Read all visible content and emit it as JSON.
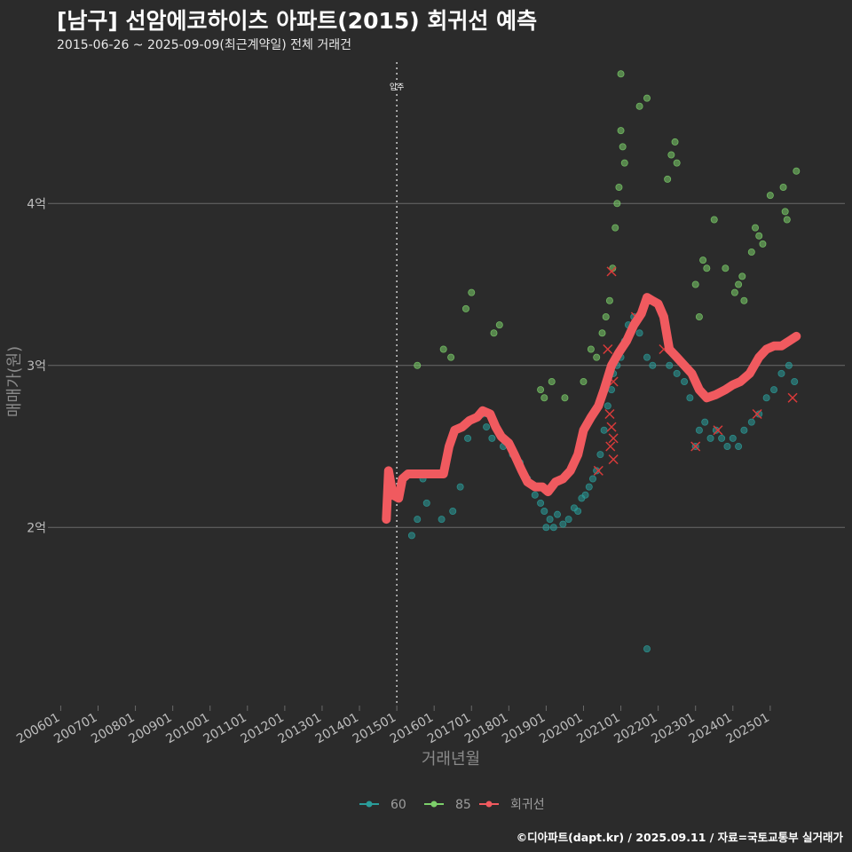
{
  "header": {
    "title": "[남구] 선암에코하이츠 아파트(2015) 회귀선 예측",
    "subtitle": "2015-06-26 ~ 2025-09-09(최근계약일) 전체 거래건"
  },
  "footer": {
    "credit": "©디아파트(dapt.kr) / 2025.09.11 / 자료=국토교통부 실거래가"
  },
  "colors": {
    "background": "#2b2b2b",
    "series_60": "#2a9d9a",
    "series_85": "#7ccf6a",
    "regression": "#f05a5f",
    "highlight_x": "#d93a3a",
    "gridline": "#6a6a6a",
    "marker_line": "#cfcfcf"
  },
  "chart_data": {
    "type": "scatter",
    "title": "[남구] 선암에코하이츠 아파트(2015) 회귀선 예측",
    "subtitle": "2015-06-26 ~ 2025-09-09(최근계약일) 전체 거래건",
    "xlabel": "거래년월",
    "ylabel": "매매가(원)",
    "x_ticks": [
      "200601",
      "200701",
      "200801",
      "200901",
      "201001",
      "201101",
      "201201",
      "201301",
      "201401",
      "201501",
      "201601",
      "201701",
      "201801",
      "201901",
      "202001",
      "202101",
      "202201",
      "202301",
      "202401",
      "202501"
    ],
    "xlim": [
      2005.8,
      2027.0
    ],
    "y_ticks": [
      {
        "value": 2.0,
        "label": "2억"
      },
      {
        "value": 3.0,
        "label": "3억"
      },
      {
        "value": 4.0,
        "label": "4억"
      }
    ],
    "ylim": [
      0.9,
      4.9
    ],
    "y_unit": "억",
    "grid": "horizontal",
    "legend_position": "bottom",
    "annotation": {
      "x": 2015.0,
      "label": "입주"
    },
    "series": [
      {
        "name": "60",
        "color": "#2a9d9a",
        "points": [
          [
            2015.4,
            1.95
          ],
          [
            2015.55,
            2.05
          ],
          [
            2015.7,
            2.3
          ],
          [
            2015.8,
            2.15
          ],
          [
            2016.2,
            2.05
          ],
          [
            2016.5,
            2.1
          ],
          [
            2016.7,
            2.25
          ],
          [
            2016.9,
            2.55
          ],
          [
            2017.3,
            2.7
          ],
          [
            2017.4,
            2.62
          ],
          [
            2017.55,
            2.55
          ],
          [
            2017.7,
            2.6
          ],
          [
            2017.85,
            2.5
          ],
          [
            2018.1,
            2.45
          ],
          [
            2018.3,
            2.4
          ],
          [
            2018.5,
            2.3
          ],
          [
            2018.7,
            2.2
          ],
          [
            2018.85,
            2.15
          ],
          [
            2018.95,
            2.1
          ],
          [
            2019.0,
            2.0
          ],
          [
            2019.1,
            2.05
          ],
          [
            2019.2,
            2.0
          ],
          [
            2019.3,
            2.08
          ],
          [
            2019.45,
            2.02
          ],
          [
            2019.6,
            2.05
          ],
          [
            2019.75,
            2.12
          ],
          [
            2019.85,
            2.1
          ],
          [
            2019.95,
            2.18
          ],
          [
            2020.05,
            2.2
          ],
          [
            2020.15,
            2.25
          ],
          [
            2020.25,
            2.3
          ],
          [
            2020.35,
            2.35
          ],
          [
            2020.45,
            2.45
          ],
          [
            2020.55,
            2.6
          ],
          [
            2020.65,
            2.75
          ],
          [
            2020.75,
            2.85
          ],
          [
            2020.8,
            2.95
          ],
          [
            2020.9,
            3.0
          ],
          [
            2021.0,
            3.05
          ],
          [
            2021.1,
            3.15
          ],
          [
            2021.2,
            3.25
          ],
          [
            2021.35,
            3.3
          ],
          [
            2021.5,
            3.2
          ],
          [
            2021.7,
            3.05
          ],
          [
            2021.85,
            3.0
          ],
          [
            2021.7,
            1.25
          ],
          [
            2022.3,
            3.0
          ],
          [
            2022.5,
            2.95
          ],
          [
            2022.7,
            2.9
          ],
          [
            2022.85,
            2.8
          ],
          [
            2023.0,
            2.5
          ],
          [
            2023.1,
            2.6
          ],
          [
            2023.25,
            2.65
          ],
          [
            2023.4,
            2.55
          ],
          [
            2023.55,
            2.6
          ],
          [
            2023.7,
            2.55
          ],
          [
            2023.85,
            2.5
          ],
          [
            2024.0,
            2.55
          ],
          [
            2024.15,
            2.5
          ],
          [
            2024.3,
            2.6
          ],
          [
            2024.5,
            2.65
          ],
          [
            2024.7,
            2.7
          ],
          [
            2024.9,
            2.8
          ],
          [
            2025.1,
            2.85
          ],
          [
            2025.3,
            2.95
          ],
          [
            2025.5,
            3.0
          ],
          [
            2025.65,
            2.9
          ]
        ]
      },
      {
        "name": "85",
        "color": "#7ccf6a",
        "points": [
          [
            2015.55,
            3.0
          ],
          [
            2016.25,
            3.1
          ],
          [
            2016.45,
            3.05
          ],
          [
            2016.85,
            3.35
          ],
          [
            2017.0,
            3.45
          ],
          [
            2017.6,
            3.2
          ],
          [
            2017.75,
            3.25
          ],
          [
            2018.85,
            2.85
          ],
          [
            2018.95,
            2.8
          ],
          [
            2019.15,
            2.9
          ],
          [
            2019.5,
            2.8
          ],
          [
            2020.0,
            2.9
          ],
          [
            2020.2,
            3.1
          ],
          [
            2020.35,
            3.05
          ],
          [
            2020.5,
            3.2
          ],
          [
            2020.6,
            3.3
          ],
          [
            2020.7,
            3.4
          ],
          [
            2020.78,
            3.6
          ],
          [
            2020.85,
            3.85
          ],
          [
            2020.9,
            4.0
          ],
          [
            2020.95,
            4.1
          ],
          [
            2021.0,
            4.45
          ],
          [
            2021.05,
            4.35
          ],
          [
            2021.1,
            4.25
          ],
          [
            2021.0,
            4.8
          ],
          [
            2021.5,
            4.6
          ],
          [
            2021.7,
            4.65
          ],
          [
            2022.25,
            4.15
          ],
          [
            2022.35,
            4.3
          ],
          [
            2022.45,
            4.38
          ],
          [
            2022.5,
            4.25
          ],
          [
            2023.0,
            3.5
          ],
          [
            2023.1,
            3.3
          ],
          [
            2023.2,
            3.65
          ],
          [
            2023.3,
            3.6
          ],
          [
            2023.5,
            3.9
          ],
          [
            2023.8,
            3.6
          ],
          [
            2024.05,
            3.45
          ],
          [
            2024.15,
            3.5
          ],
          [
            2024.25,
            3.55
          ],
          [
            2024.3,
            3.4
          ],
          [
            2024.5,
            3.7
          ],
          [
            2024.6,
            3.85
          ],
          [
            2024.7,
            3.8
          ],
          [
            2024.8,
            3.75
          ],
          [
            2025.0,
            4.05
          ],
          [
            2025.35,
            4.1
          ],
          [
            2025.4,
            3.95
          ],
          [
            2025.45,
            3.9
          ],
          [
            2025.7,
            4.2
          ]
        ]
      }
    ],
    "regression": {
      "name": "회귀선",
      "color": "#f05a5f",
      "points": [
        [
          2014.72,
          2.05
        ],
        [
          2014.78,
          2.35
        ],
        [
          2014.9,
          2.2
        ],
        [
          2015.05,
          2.18
        ],
        [
          2015.15,
          2.3
        ],
        [
          2015.3,
          2.33
        ],
        [
          2015.5,
          2.33
        ],
        [
          2015.7,
          2.33
        ],
        [
          2016.0,
          2.33
        ],
        [
          2016.25,
          2.33
        ],
        [
          2016.4,
          2.5
        ],
        [
          2016.55,
          2.6
        ],
        [
          2016.75,
          2.62
        ],
        [
          2016.95,
          2.66
        ],
        [
          2017.15,
          2.68
        ],
        [
          2017.3,
          2.72
        ],
        [
          2017.5,
          2.7
        ],
        [
          2017.65,
          2.62
        ],
        [
          2017.8,
          2.56
        ],
        [
          2018.0,
          2.52
        ],
        [
          2018.15,
          2.45
        ],
        [
          2018.35,
          2.35
        ],
        [
          2018.5,
          2.28
        ],
        [
          2018.7,
          2.25
        ],
        [
          2018.9,
          2.25
        ],
        [
          2019.05,
          2.22
        ],
        [
          2019.25,
          2.28
        ],
        [
          2019.45,
          2.3
        ],
        [
          2019.65,
          2.35
        ],
        [
          2019.85,
          2.45
        ],
        [
          2020.0,
          2.6
        ],
        [
          2020.2,
          2.68
        ],
        [
          2020.4,
          2.75
        ],
        [
          2020.55,
          2.85
        ],
        [
          2020.75,
          3.0
        ],
        [
          2020.95,
          3.08
        ],
        [
          2021.15,
          3.15
        ],
        [
          2021.35,
          3.25
        ],
        [
          2021.55,
          3.32
        ],
        [
          2021.7,
          3.42
        ],
        [
          2021.85,
          3.4
        ],
        [
          2022.0,
          3.38
        ],
        [
          2022.15,
          3.3
        ],
        [
          2022.3,
          3.1
        ],
        [
          2022.5,
          3.05
        ],
        [
          2022.7,
          3.0
        ],
        [
          2022.9,
          2.95
        ],
        [
          2023.1,
          2.85
        ],
        [
          2023.3,
          2.8
        ],
        [
          2023.55,
          2.82
        ],
        [
          2023.8,
          2.85
        ],
        [
          2024.0,
          2.88
        ],
        [
          2024.2,
          2.9
        ],
        [
          2024.45,
          2.95
        ],
        [
          2024.7,
          3.05
        ],
        [
          2024.9,
          3.1
        ],
        [
          2025.1,
          3.12
        ],
        [
          2025.3,
          3.12
        ],
        [
          2025.5,
          3.15
        ],
        [
          2025.7,
          3.18
        ]
      ]
    },
    "highlighted_points": [
      [
        2020.75,
        3.58
      ],
      [
        2020.65,
        3.1
      ],
      [
        2020.8,
        2.9
      ],
      [
        2020.7,
        2.7
      ],
      [
        2020.75,
        2.62
      ],
      [
        2020.8,
        2.55
      ],
      [
        2020.72,
        2.5
      ],
      [
        2020.8,
        2.42
      ],
      [
        2020.4,
        2.35
      ],
      [
        2021.4,
        3.3
      ],
      [
        2022.15,
        3.1
      ],
      [
        2023.0,
        2.5
      ],
      [
        2023.6,
        2.6
      ],
      [
        2024.65,
        2.7
      ],
      [
        2025.6,
        2.8
      ]
    ],
    "legend": [
      {
        "label": "60",
        "color": "#2a9d9a"
      },
      {
        "label": "85",
        "color": "#7ccf6a"
      },
      {
        "label": "회귀선",
        "color": "#f05a5f"
      }
    ]
  }
}
